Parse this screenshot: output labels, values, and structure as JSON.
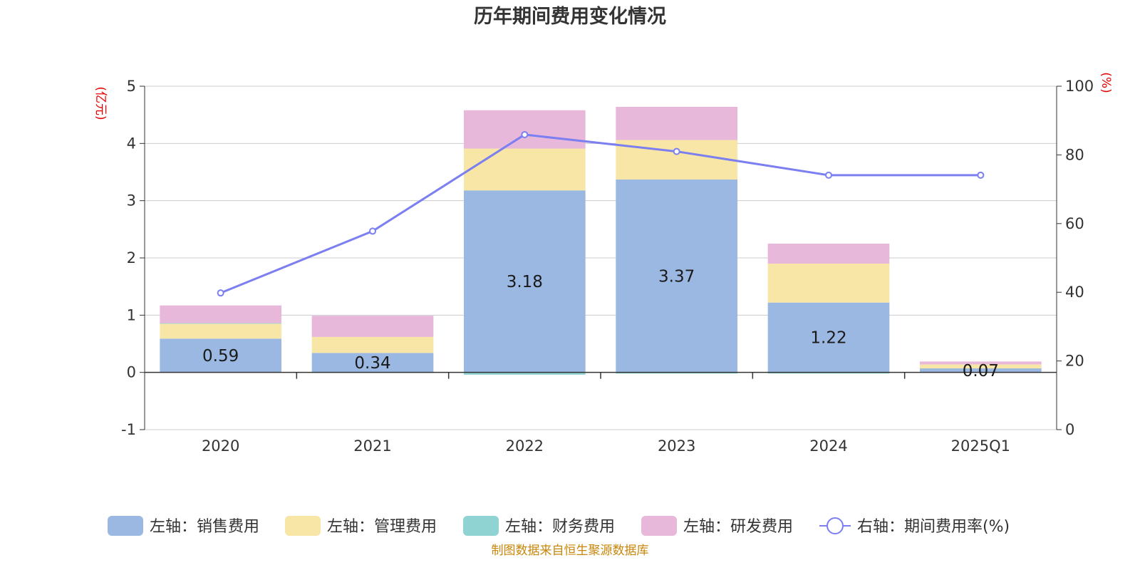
{
  "chart_data": {
    "type": "bar",
    "stacked": true,
    "title": "历年期间费用变化情况",
    "categories": [
      "2020",
      "2021",
      "2022",
      "2023",
      "2024",
      "2025Q1"
    ],
    "left_axis": {
      "unit": "(亿元)",
      "ylim": [
        -1,
        5
      ],
      "ticks": [
        -1,
        0,
        1,
        2,
        3,
        4,
        5
      ]
    },
    "right_axis": {
      "unit": "(%)",
      "ylim": [
        0,
        100
      ],
      "ticks": [
        0,
        20,
        40,
        60,
        80,
        100
      ]
    },
    "series": [
      {
        "name": "左轴：销售费用",
        "axis": "left",
        "color": "#9bb8e2",
        "values": [
          0.59,
          0.34,
          3.18,
          3.37,
          1.22,
          0.07
        ],
        "show_labels": true
      },
      {
        "name": "左轴：管理费用",
        "axis": "left",
        "color": "#f8e6a6",
        "values": [
          0.26,
          0.28,
          0.73,
          0.69,
          0.68,
          0.07
        ]
      },
      {
        "name": "左轴：财务费用",
        "axis": "left",
        "color": "#8fd3d3",
        "values": [
          0.01,
          -0.01,
          -0.04,
          -0.02,
          -0.02,
          0.0
        ]
      },
      {
        "name": "左轴：研发费用",
        "axis": "left",
        "color": "#e8b8da",
        "values": [
          0.31,
          0.37,
          0.67,
          0.58,
          0.35,
          0.05
        ]
      },
      {
        "name": "右轴：期间费用率(%)",
        "axis": "right",
        "type": "line",
        "color": "#7b7ff0",
        "values": [
          39.8,
          57.8,
          85.9,
          81.0,
          74.1,
          74.1
        ]
      }
    ]
  },
  "source": "制图数据来自恒生聚源数据库"
}
